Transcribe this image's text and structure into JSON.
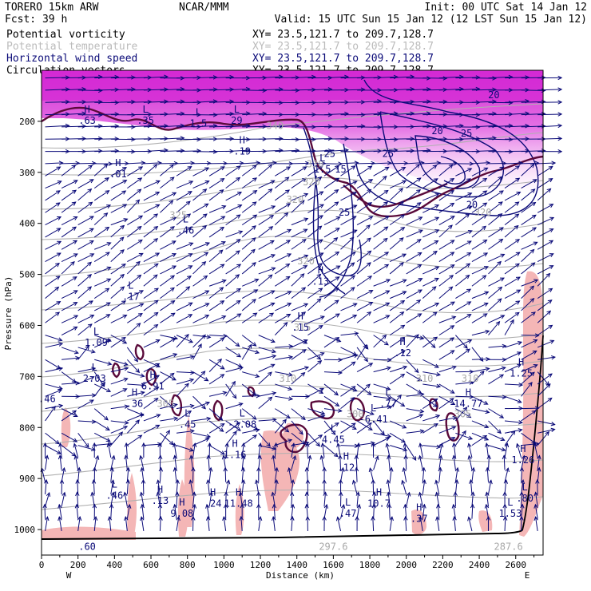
{
  "header": {
    "model": "TORERO  15km ARW",
    "forecast": "Fcst:   39 h",
    "center": "NCAR/MMM",
    "init": "Init: 00 UTC Sat 14 Jan 12",
    "valid": "Valid: 15 UTC Sun 15 Jan 12 (12 LST Sun 15 Jan 12)"
  },
  "fields": [
    {
      "name": "Potential vorticity",
      "xy": "XY=  23.5,121.7 to 209.7,128.7",
      "color": "#000000"
    },
    {
      "name": "Potential temperature",
      "xy": "XY=  23.5,121.7 to 209.7,128.7",
      "color": "#bbbbbb"
    },
    {
      "name": "Horizontal wind speed",
      "xy": "XY=  23.5,121.7 to 209.7,128.7",
      "color": "#0a0a78"
    },
    {
      "name": "Circulation vectors",
      "xy": "XY=  23.5,121.7 to 209.7,128.7",
      "color": "#000000"
    }
  ],
  "colors": {
    "pv_fill_low": "#f4b6b6",
    "pv_fill_high": "#e040e0",
    "pv_contour": "#5a0a3a",
    "theta": "#b0b0b0",
    "wind": "#0a0a78"
  },
  "chart_data": {
    "type": "cross-section",
    "xlabel": "Distance (km)",
    "ylabel": "Pressure (hPa)",
    "xlim": [
      0,
      2750
    ],
    "ylim": [
      1050,
      100
    ],
    "xticks": [
      "0",
      "200",
      "400",
      "600",
      "800",
      "1000",
      "1200",
      "1400",
      "1600",
      "1800",
      "2000",
      "2200",
      "2400",
      "2600"
    ],
    "yticks": [
      "200",
      "300",
      "400",
      "500",
      "600",
      "700",
      "800",
      "900",
      "1000"
    ],
    "end_left": "W",
    "end_right": "E",
    "theta_labels": [
      {
        "text": "340",
        "x": 1280,
        "p": 215
      },
      {
        "text": "330",
        "x": 1500,
        "p": 290
      },
      {
        "text": "325",
        "x": 750,
        "p": 390
      },
      {
        "text": "320",
        "x": 1450,
        "p": 480
      },
      {
        "text": "315",
        "x": 1430,
        "p": 610
      },
      {
        "text": "310",
        "x": 1350,
        "p": 710
      },
      {
        "text": "310",
        "x": 2100,
        "p": 710
      },
      {
        "text": "310",
        "x": 2350,
        "p": 710
      },
      {
        "text": "305",
        "x": 680,
        "p": 760
      },
      {
        "text": "305",
        "x": 2310,
        "p": 780
      },
      {
        "text": "300",
        "x": 1720,
        "p": 780
      },
      {
        "text": "297.6",
        "x": 1600,
        "p": 1040
      },
      {
        "text": "287.6",
        "x": 2560,
        "p": 1040
      },
      {
        "text": "320",
        "x": 1480,
        "p": 325
      },
      {
        "text": "320",
        "x": 2420,
        "p": 385
      },
      {
        "text": "320",
        "x": 1390,
        "p": 360
      }
    ],
    "speed_labels": [
      {
        "text": "20",
        "x": 2480,
        "p": 155
      },
      {
        "text": "20",
        "x": 2170,
        "p": 225
      },
      {
        "text": "25",
        "x": 2330,
        "p": 230
      },
      {
        "text": "25",
        "x": 1580,
        "p": 270
      },
      {
        "text": "25",
        "x": 1660,
        "p": 385
      },
      {
        "text": "20",
        "x": 2360,
        "p": 370
      },
      {
        "text": "25",
        "x": 1900,
        "p": 270
      },
      {
        "text": "15",
        "x": 1640,
        "p": 300
      }
    ],
    "extrema": [
      {
        "mark": "H",
        "value": ".63",
        "x": 250,
        "p": 205
      },
      {
        "mark": "L",
        "value": ".35",
        "x": 570,
        "p": 205
      },
      {
        "mark": "L",
        "value": "1.5",
        "x": 860,
        "p": 210
      },
      {
        "mark": "L",
        "value": "29",
        "x": 1070,
        "p": 205
      },
      {
        "mark": "H",
        "value": ".19",
        "x": 1100,
        "p": 265
      },
      {
        "mark": "L",
        "value": "1.5",
        "x": 1540,
        "p": 300
      },
      {
        "mark": "H",
        "value": ".01",
        "x": 420,
        "p": 310
      },
      {
        "mark": "L",
        "value": ".46",
        "x": 790,
        "p": 420
      },
      {
        "mark": "H",
        "value": ".13",
        "x": 1530,
        "p": 520
      },
      {
        "mark": "L",
        "value": ".17",
        "x": 490,
        "p": 550
      },
      {
        "mark": "H",
        "value": ".15",
        "x": 1420,
        "p": 610
      },
      {
        "mark": "L",
        "value": "1.09",
        "x": 300,
        "p": 640
      },
      {
        "mark": "H",
        "value": ".12",
        "x": 1980,
        "p": 660
      },
      {
        "mark": "L",
        "value": "2.03",
        "x": 290,
        "p": 710
      },
      {
        "mark": "H",
        "value": "6.91",
        "x": 610,
        "p": 725
      },
      {
        "mark": "H",
        "value": "1.25",
        "x": 2630,
        "p": 700
      },
      {
        "mark": "H",
        "value": ".36",
        "x": 510,
        "p": 760
      },
      {
        "mark": "L",
        "value": ".77",
        "x": 1900,
        "p": 760
      },
      {
        "mark": "H",
        "value": "14.77",
        "x": 2340,
        "p": 760
      },
      {
        "mark": "L",
        "value": ".45",
        "x": 800,
        "p": 800
      },
      {
        "mark": "L",
        "value": "-2.08",
        "x": 1100,
        "p": 800
      },
      {
        "mark": "L",
        "value": "-6.41",
        "x": 1820,
        "p": 790
      },
      {
        "mark": "L",
        "value": "4.45",
        "x": 1600,
        "p": 830
      },
      {
        "mark": "H",
        "value": "1.16",
        "x": 1060,
        "p": 860
      },
      {
        "mark": "H",
        "value": ".12",
        "x": 1670,
        "p": 885
      },
      {
        "mark": "H",
        "value": "1.26",
        "x": 2640,
        "p": 870
      },
      {
        "mark": "L",
        "value": ".46",
        "x": 400,
        "p": 940
      },
      {
        "mark": "H",
        "value": ".13",
        "x": 650,
        "p": 950
      },
      {
        "mark": "H",
        "value": "9.08",
        "x": 770,
        "p": 975
      },
      {
        "mark": "H",
        "value": ".24",
        "x": 940,
        "p": 955
      },
      {
        "mark": "H",
        "value": "11.48",
        "x": 1080,
        "p": 955
      },
      {
        "mark": "L",
        "value": ".47",
        "x": 1680,
        "p": 975
      },
      {
        "mark": "H",
        "value": "10.7",
        "x": 1850,
        "p": 955
      },
      {
        "mark": "H",
        "value": ".37",
        "x": 2070,
        "p": 985
      },
      {
        "mark": "L",
        "value": ".80",
        "x": 2650,
        "p": 945
      },
      {
        "mark": "L",
        "value": "1.53",
        "x": 2570,
        "p": 975
      },
      {
        "mark": "",
        "value": ".46",
        "x": 30,
        "p": 750
      },
      {
        "mark": "",
        "value": ".60",
        "x": 250,
        "p": 1040
      }
    ]
  }
}
